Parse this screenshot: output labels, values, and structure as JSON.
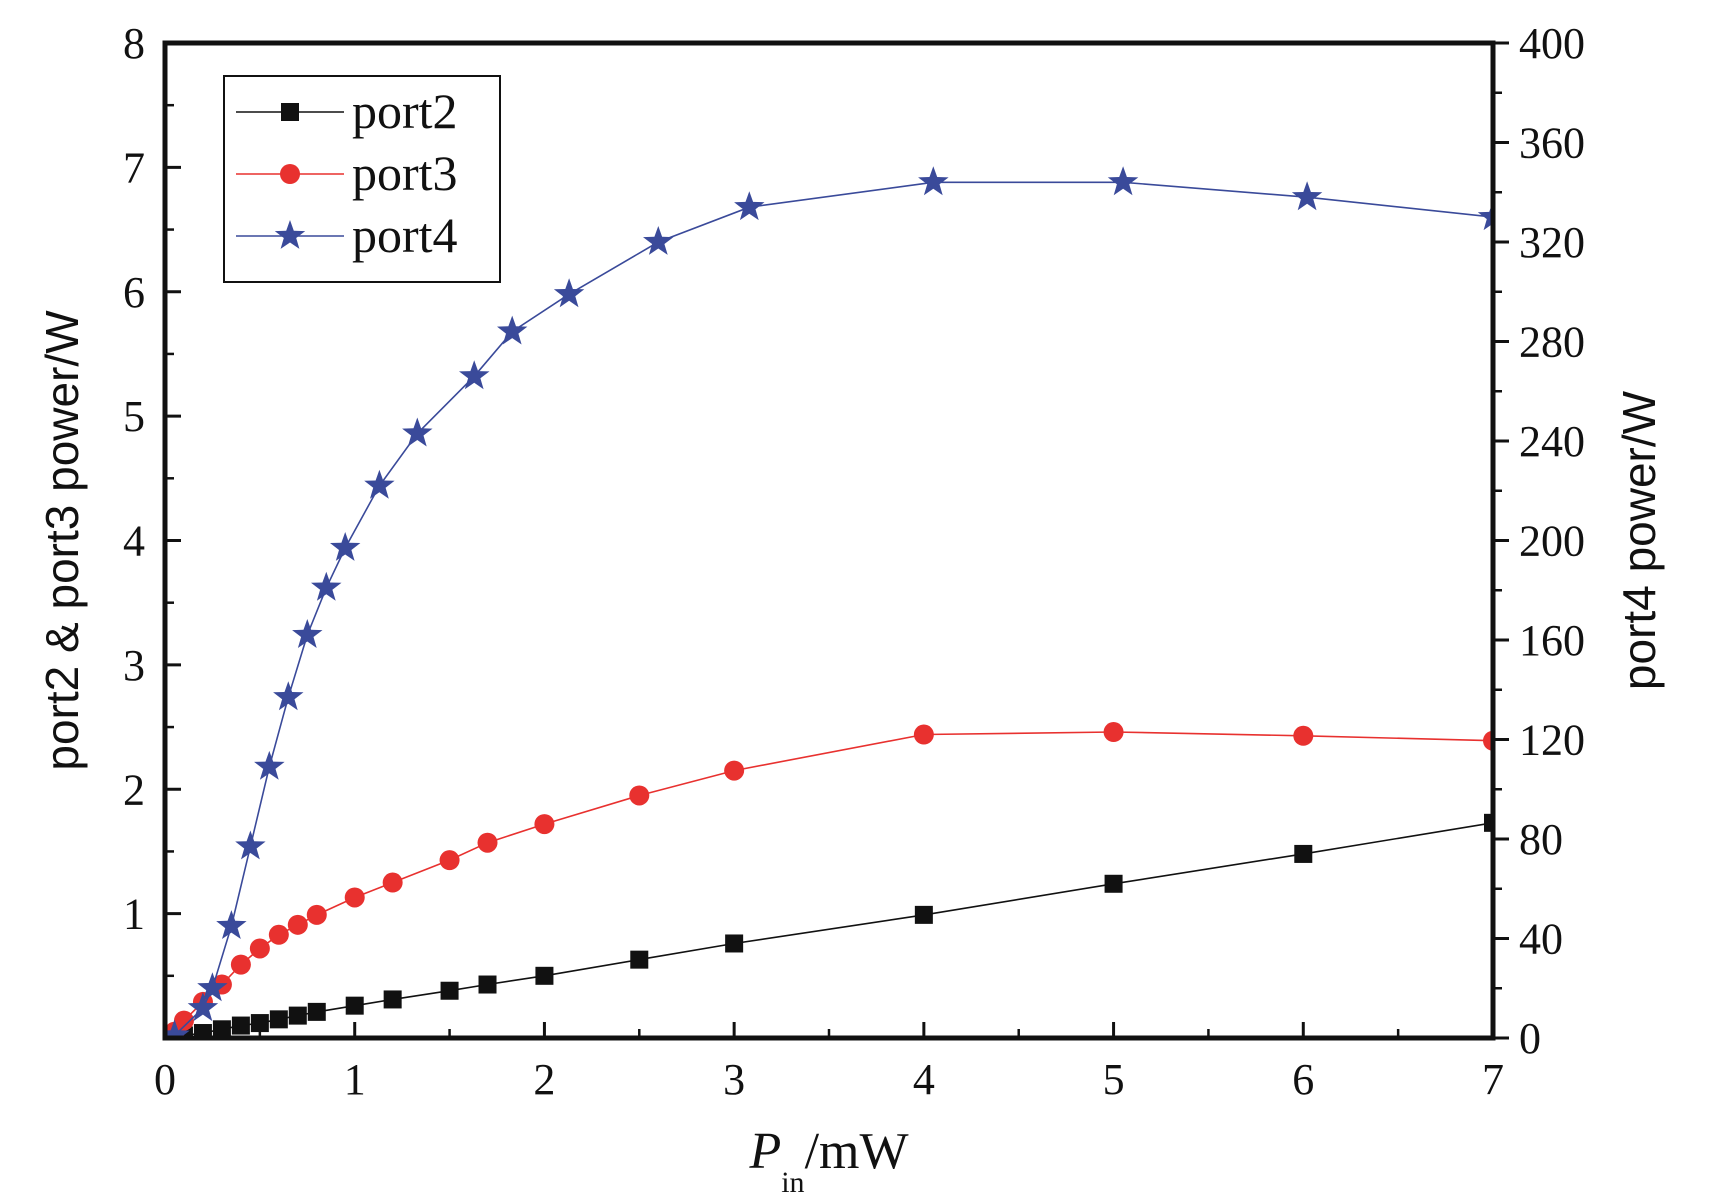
{
  "chart_data": {
    "type": "line",
    "xlabel_main": "P",
    "xlabel_sub": "in",
    "xlabel_unit": "/mW",
    "ylabel_left": "port2 & port3 power/W",
    "ylabel_right": "port4 power/W",
    "xlim": [
      0,
      7
    ],
    "ylim_left": [
      0,
      8
    ],
    "ylim_right": [
      0,
      400
    ],
    "x_ticks": [
      0,
      1,
      2,
      3,
      4,
      5,
      6,
      7
    ],
    "y_left_ticks": [
      1,
      2,
      3,
      4,
      5,
      6,
      7,
      8
    ],
    "y_right_ticks": [
      0,
      40,
      80,
      120,
      160,
      200,
      240,
      280,
      320,
      360,
      400
    ],
    "legend_position": "top-left",
    "series": [
      {
        "name": "port2",
        "axis": "left",
        "marker": "square",
        "color": "#111111",
        "x": [
          0.05,
          0.1,
          0.2,
          0.3,
          0.4,
          0.5,
          0.6,
          0.7,
          0.8,
          1.0,
          1.2,
          1.5,
          1.7,
          2.0,
          2.5,
          3.0,
          4.0,
          5.0,
          6.0,
          7.0
        ],
        "y": [
          0.01,
          0.02,
          0.04,
          0.07,
          0.1,
          0.12,
          0.15,
          0.18,
          0.21,
          0.26,
          0.31,
          0.38,
          0.43,
          0.5,
          0.63,
          0.76,
          0.99,
          1.24,
          1.48,
          1.73
        ]
      },
      {
        "name": "port3",
        "axis": "left",
        "marker": "circle",
        "color": "#e8312f",
        "x": [
          0.05,
          0.1,
          0.2,
          0.3,
          0.4,
          0.5,
          0.6,
          0.7,
          0.8,
          1.0,
          1.2,
          1.5,
          1.7,
          2.0,
          2.5,
          3.0,
          4.0,
          5.0,
          6.0,
          7.0
        ],
        "y": [
          0.05,
          0.14,
          0.29,
          0.43,
          0.59,
          0.72,
          0.83,
          0.91,
          0.99,
          1.13,
          1.25,
          1.43,
          1.57,
          1.72,
          1.95,
          2.15,
          2.44,
          2.46,
          2.43,
          2.39
        ]
      },
      {
        "name": "port4",
        "axis": "right",
        "marker": "star",
        "color": "#3a4a9a",
        "x": [
          0.05,
          0.2,
          0.25,
          0.35,
          0.45,
          0.55,
          0.65,
          0.75,
          0.85,
          0.95,
          1.13,
          1.33,
          1.63,
          1.83,
          2.13,
          2.6,
          3.08,
          4.05,
          5.05,
          6.02,
          7.0
        ],
        "y": [
          1,
          12,
          20,
          45,
          77,
          109,
          137,
          162,
          181,
          197,
          222,
          243,
          266,
          284,
          299,
          320,
          334,
          344,
          344,
          338,
          330
        ]
      }
    ]
  }
}
